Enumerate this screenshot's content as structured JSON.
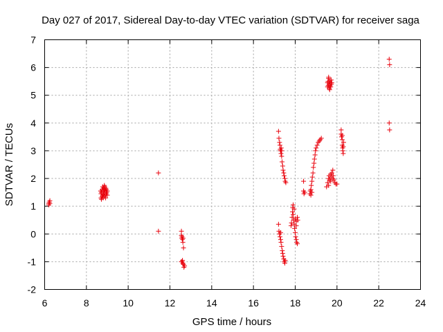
{
  "chart_data": {
    "type": "scatter",
    "title": "Day 027 of 2017, Sidereal Day-to-day VTEC variation (SDTVAR) for receiver saga",
    "xlabel": "GPS time / hours",
    "ylabel": "SDTVAR / TECUs",
    "xlim": [
      6,
      24
    ],
    "ylim": [
      -2,
      7
    ],
    "xticks": [
      "6",
      "8",
      "10",
      "12",
      "14",
      "16",
      "18",
      "20",
      "22",
      "24"
    ],
    "yticks": [
      "-2",
      "-1",
      "0",
      "1",
      "2",
      "3",
      "4",
      "5",
      "6",
      "7"
    ],
    "grid": true,
    "legend": "none",
    "marker": "plus",
    "color": "#e8000b",
    "series": [
      {
        "points": [
          [
            6.2,
            1.05
          ],
          [
            6.2,
            1.1
          ],
          [
            6.22,
            1.15
          ],
          [
            6.25,
            1.1
          ],
          [
            6.25,
            1.2
          ],
          [
            8.7,
            1.3
          ],
          [
            8.7,
            1.45
          ],
          [
            8.72,
            1.5
          ],
          [
            8.75,
            1.35
          ],
          [
            8.75,
            1.6
          ],
          [
            8.78,
            1.4
          ],
          [
            8.78,
            1.7
          ],
          [
            8.8,
            1.3
          ],
          [
            8.8,
            1.55
          ],
          [
            8.82,
            1.65
          ],
          [
            8.82,
            1.45
          ],
          [
            8.85,
            1.35
          ],
          [
            8.85,
            1.6
          ],
          [
            8.87,
            1.5
          ],
          [
            8.88,
            1.7
          ],
          [
            8.9,
            1.4
          ],
          [
            8.9,
            1.55
          ],
          [
            8.92,
            1.3
          ],
          [
            8.93,
            1.65
          ],
          [
            8.95,
            1.45
          ],
          [
            8.95,
            1.6
          ],
          [
            8.97,
            1.5
          ],
          [
            9.0,
            1.4
          ],
          [
            9.0,
            1.55
          ],
          [
            8.68,
            1.55
          ],
          [
            8.72,
            1.25
          ],
          [
            8.86,
            1.75
          ],
          [
            11.45,
            2.2
          ],
          [
            11.45,
            0.1
          ],
          [
            12.55,
            0.1
          ],
          [
            12.55,
            -0.05
          ],
          [
            12.57,
            -0.15
          ],
          [
            12.58,
            -0.1
          ],
          [
            12.6,
            -0.2
          ],
          [
            12.62,
            -0.3
          ],
          [
            12.63,
            -0.15
          ],
          [
            12.65,
            -0.5
          ],
          [
            12.6,
            -0.95
          ],
          [
            12.58,
            -1.0
          ],
          [
            12.62,
            -1.05
          ],
          [
            12.65,
            -1.1
          ],
          [
            12.67,
            -1.2
          ],
          [
            12.7,
            -1.15
          ],
          [
            12.55,
            -1.0
          ],
          [
            17.2,
            3.7
          ],
          [
            17.22,
            3.45
          ],
          [
            17.25,
            3.3
          ],
          [
            17.27,
            3.2
          ],
          [
            17.28,
            3.05
          ],
          [
            17.3,
            3.0
          ],
          [
            17.32,
            2.9
          ],
          [
            17.33,
            3.1
          ],
          [
            17.35,
            2.8
          ],
          [
            17.37,
            2.6
          ],
          [
            17.4,
            2.45
          ],
          [
            17.42,
            2.3
          ],
          [
            17.45,
            2.2
          ],
          [
            17.47,
            2.1
          ],
          [
            17.5,
            2.0
          ],
          [
            17.52,
            1.9
          ],
          [
            17.55,
            1.85
          ],
          [
            17.35,
            3.0
          ],
          [
            17.2,
            0.35
          ],
          [
            17.22,
            0.1
          ],
          [
            17.25,
            0.0
          ],
          [
            17.27,
            -0.1
          ],
          [
            17.3,
            -0.2
          ],
          [
            17.32,
            -0.3
          ],
          [
            17.35,
            -0.45
          ],
          [
            17.38,
            -0.6
          ],
          [
            17.4,
            -0.7
          ],
          [
            17.42,
            -0.8
          ],
          [
            17.45,
            -0.9
          ],
          [
            17.48,
            -1.0
          ],
          [
            17.5,
            -1.05
          ],
          [
            17.52,
            -0.95
          ],
          [
            17.3,
            0.05
          ],
          [
            17.8,
            0.3
          ],
          [
            17.82,
            0.4
          ],
          [
            17.85,
            0.6
          ],
          [
            17.87,
            0.8
          ],
          [
            17.88,
            0.95
          ],
          [
            17.9,
            0.7
          ],
          [
            17.92,
            0.5
          ],
          [
            17.95,
            0.35
          ],
          [
            17.97,
            0.2
          ],
          [
            18.0,
            0.05
          ],
          [
            18.02,
            -0.1
          ],
          [
            18.05,
            -0.2
          ],
          [
            18.07,
            -0.3
          ],
          [
            18.1,
            -0.35
          ],
          [
            17.9,
            1.05
          ],
          [
            17.95,
            0.9
          ],
          [
            18.0,
            0.55
          ],
          [
            18.05,
            0.45
          ],
          [
            18.1,
            0.6
          ],
          [
            18.12,
            0.5
          ],
          [
            18.05,
            0.3
          ],
          [
            18.4,
            1.9
          ],
          [
            18.4,
            1.55
          ],
          [
            18.42,
            1.45
          ],
          [
            18.45,
            1.5
          ],
          [
            18.7,
            1.45
          ],
          [
            18.72,
            1.55
          ],
          [
            18.75,
            1.6
          ],
          [
            18.77,
            1.75
          ],
          [
            18.8,
            1.9
          ],
          [
            18.82,
            2.05
          ],
          [
            18.85,
            2.2
          ],
          [
            18.87,
            2.4
          ],
          [
            18.9,
            2.55
          ],
          [
            18.92,
            2.7
          ],
          [
            18.95,
            2.85
          ],
          [
            18.97,
            3.0
          ],
          [
            19.0,
            3.1
          ],
          [
            19.05,
            3.2
          ],
          [
            19.1,
            3.3
          ],
          [
            19.15,
            3.35
          ],
          [
            19.2,
            3.4
          ],
          [
            19.25,
            3.45
          ],
          [
            18.75,
            1.4
          ],
          [
            18.8,
            1.5
          ],
          [
            19.55,
            5.3
          ],
          [
            19.55,
            5.45
          ],
          [
            19.57,
            5.5
          ],
          [
            19.58,
            5.35
          ],
          [
            19.6,
            5.6
          ],
          [
            19.62,
            5.4
          ],
          [
            19.63,
            5.25
          ],
          [
            19.65,
            5.5
          ],
          [
            19.67,
            5.35
          ],
          [
            19.68,
            5.45
          ],
          [
            19.7,
            5.3
          ],
          [
            19.72,
            5.55
          ],
          [
            19.73,
            5.4
          ],
          [
            19.75,
            5.45
          ],
          [
            19.6,
            5.65
          ],
          [
            19.65,
            5.2
          ],
          [
            19.5,
            1.7
          ],
          [
            19.55,
            1.85
          ],
          [
            19.6,
            2.0
          ],
          [
            19.62,
            2.1
          ],
          [
            19.65,
            1.95
          ],
          [
            19.7,
            2.15
          ],
          [
            19.72,
            2.05
          ],
          [
            19.75,
            2.2
          ],
          [
            19.8,
            2.3
          ],
          [
            19.82,
            2.1
          ],
          [
            19.85,
            1.95
          ],
          [
            19.9,
            1.85
          ],
          [
            19.95,
            1.8
          ],
          [
            20.0,
            1.8
          ],
          [
            19.7,
            1.9
          ],
          [
            19.8,
            2.0
          ],
          [
            19.6,
            1.75
          ],
          [
            20.2,
            3.75
          ],
          [
            20.2,
            3.6
          ],
          [
            20.22,
            3.5
          ],
          [
            20.25,
            3.4
          ],
          [
            20.25,
            3.2
          ],
          [
            20.27,
            3.1
          ],
          [
            20.28,
            3.0
          ],
          [
            20.3,
            2.9
          ],
          [
            20.3,
            3.15
          ],
          [
            20.32,
            3.3
          ],
          [
            20.25,
            3.55
          ],
          [
            22.5,
            6.3
          ],
          [
            22.52,
            6.1
          ],
          [
            22.5,
            4.0
          ],
          [
            22.52,
            3.75
          ]
        ]
      }
    ]
  }
}
